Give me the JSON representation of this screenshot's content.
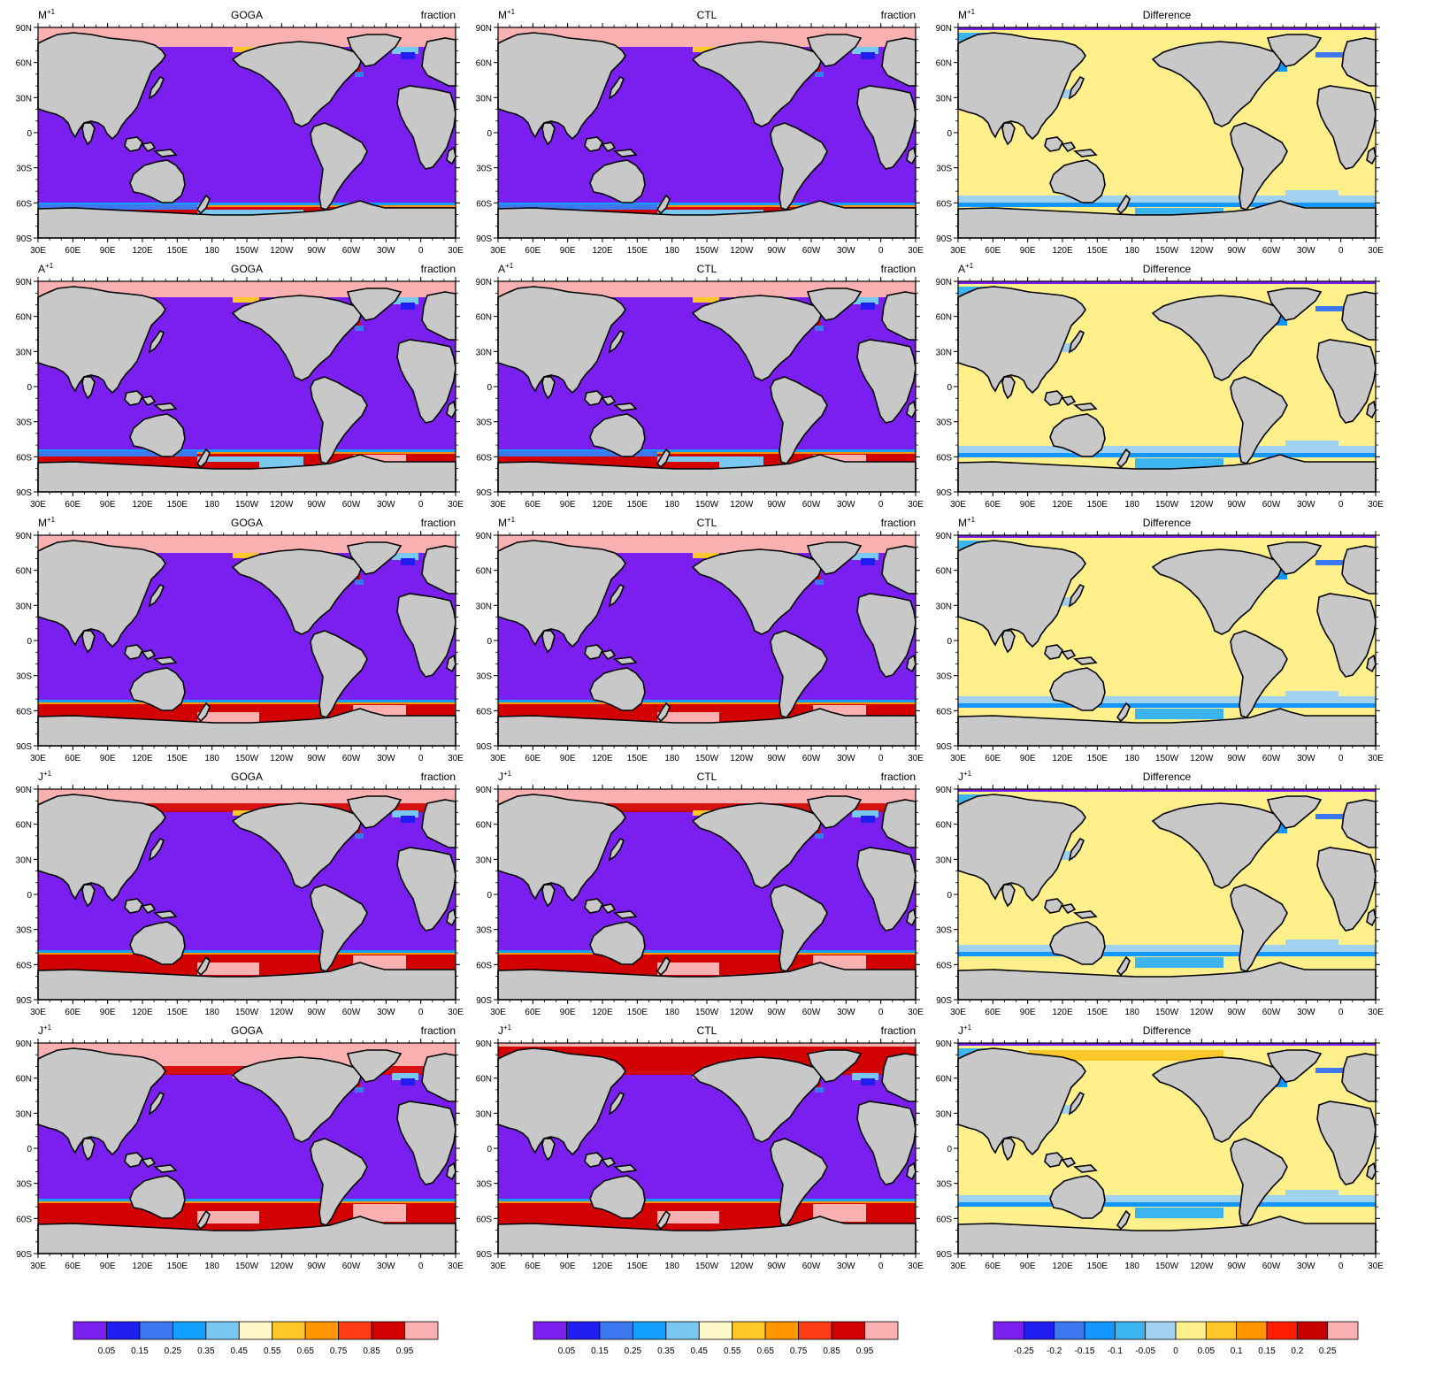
{
  "columns": [
    {
      "title": "GOGA",
      "units": "fraction"
    },
    {
      "title": "CTL",
      "units": "fraction"
    },
    {
      "title": "Difference",
      "units": ""
    }
  ],
  "rows": [
    {
      "month": "M",
      "sup": "+1"
    },
    {
      "month": "A",
      "sup": "+1"
    },
    {
      "month": "M",
      "sup": "+1"
    },
    {
      "month": "J",
      "sup": "+1"
    },
    {
      "month": "J",
      "sup": "+1"
    }
  ],
  "lat_labels": [
    "90N",
    "60N",
    "30N",
    "0",
    "30S",
    "60S",
    "90S"
  ],
  "lon_labels": [
    "30E",
    "60E",
    "90E",
    "120E",
    "150E",
    "180",
    "150W",
    "120W",
    "90W",
    "60W",
    "30W",
    "0",
    "30E"
  ],
  "colors": {
    "land": "#c8c8c8",
    "ocean_low": "#7a1ff0",
    "diff_zero": "#fff08c",
    "ice_full": "#f9b0b0"
  },
  "colorbars": [
    {
      "name": "fraction",
      "colors": [
        "#7a1ff0",
        "#1e1ef0",
        "#3c78f0",
        "#14a0ff",
        "#78c8f0",
        "#fff8c8",
        "#ffc828",
        "#ff9600",
        "#ff3c14",
        "#d20000",
        "#f9b0b0"
      ],
      "labels": [
        "0.05",
        "0.15",
        "0.25",
        "0.35",
        "0.45",
        "0.55",
        "0.65",
        "0.75",
        "0.85",
        "0.95"
      ]
    },
    {
      "name": "fraction",
      "colors": [
        "#7a1ff0",
        "#1e1ef0",
        "#3c78f0",
        "#14a0ff",
        "#78c8f0",
        "#fff8c8",
        "#ffc828",
        "#ff9600",
        "#ff3c14",
        "#d20000",
        "#f9b0b0"
      ],
      "labels": [
        "0.05",
        "0.15",
        "0.25",
        "0.35",
        "0.45",
        "0.55",
        "0.65",
        "0.75",
        "0.85",
        "0.95"
      ]
    },
    {
      "name": "difference",
      "colors": [
        "#7a1ff0",
        "#1e1ef0",
        "#3c78f0",
        "#1496ff",
        "#3cb4f0",
        "#a0d2f0",
        "#fff08c",
        "#ffc828",
        "#ff9600",
        "#ff1e00",
        "#c80000",
        "#f9b0b0"
      ],
      "labels": [
        "-0.25",
        "-0.2",
        "-0.15",
        "-0.1",
        "-0.05",
        "0",
        "0.05",
        "0.1",
        "0.15",
        "0.2",
        "0.25"
      ]
    }
  ]
}
